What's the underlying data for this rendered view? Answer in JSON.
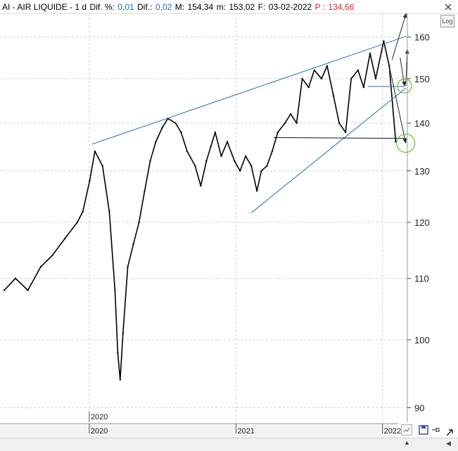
{
  "header": {
    "symbol": "AI",
    "sep1": " - ",
    "name": "AIR LIQUIDE",
    "sep2": " - ",
    "interval": "1 d",
    "dif_pct_label": "Dif. %:",
    "dif_pct_value": "0,01",
    "dif_label": "Dif.:",
    "dif_value": "0,02",
    "m_label": "M:",
    "m_value": "154,34",
    "m2_label": "m:",
    "m2_value": "153,02",
    "f_label": "F:",
    "f_value": "03-02-2022",
    "p_label": "P :",
    "p_value": "134,66"
  },
  "close_icon": "close-icon",
  "log_button": "Log",
  "colors": {
    "price": "#000000",
    "trendline": "#1f6fc8",
    "circle": "#6cbf2a",
    "arrow": "#222222",
    "grid": "#cfcfcf",
    "header_value": "#1f6fc8",
    "header_price": "#e0202a"
  },
  "toolbar": {
    "zoom_icon": "zoom-icon",
    "save_icon": "save-icon",
    "pin_icon": "pin-icon",
    "nav_icon": "arrow-icon"
  },
  "chart_data": {
    "type": "line",
    "title": "",
    "xlabel": "",
    "ylabel": "",
    "scale": "log",
    "ylim": [
      88,
      166
    ],
    "y_ticks": [
      90,
      100,
      110,
      120,
      130,
      140,
      150,
      160
    ],
    "x_ticks": [
      "2020",
      "2021",
      "2022"
    ],
    "top_year_label": "2020",
    "grid": true,
    "series": [
      {
        "x": [
          "2019-06-03",
          "2019-07-01",
          "2019-08-01",
          "2019-09-02",
          "2019-10-01",
          "2019-11-01",
          "2019-12-02",
          "2019-12-16",
          "2020-01-02",
          "2020-01-15",
          "2020-02-03",
          "2020-02-20",
          "2020-03-05",
          "2020-03-12",
          "2020-03-18",
          "2020-03-25",
          "2020-04-06",
          "2020-04-20",
          "2020-05-04",
          "2020-05-18",
          "2020-06-01",
          "2020-06-15",
          "2020-07-01",
          "2020-07-15",
          "2020-08-03",
          "2020-08-17",
          "2020-09-01",
          "2020-09-21",
          "2020-10-05",
          "2020-10-19",
          "2020-10-30",
          "2020-11-10",
          "2020-11-25",
          "2020-12-10",
          "2020-12-28",
          "2021-01-11",
          "2021-01-25",
          "2021-02-08",
          "2021-02-22",
          "2021-03-05",
          "2021-03-19",
          "2021-04-01",
          "2021-04-15",
          "2021-05-03",
          "2021-05-17",
          "2021-06-01",
          "2021-06-15",
          "2021-07-01",
          "2021-07-15",
          "2021-08-02",
          "2021-08-16",
          "2021-09-01",
          "2021-09-15",
          "2021-10-01",
          "2021-10-15",
          "2021-11-01",
          "2021-11-15",
          "2021-12-01",
          "2021-12-15",
          "2022-01-04",
          "2022-01-18",
          "2022-02-03"
        ],
        "y": [
          108,
          110,
          108,
          112,
          114,
          117,
          120,
          122,
          128,
          134,
          131,
          122,
          108,
          98,
          94,
          101,
          112,
          116,
          120,
          126,
          132,
          136,
          139,
          141,
          140,
          138,
          134,
          131,
          127,
          132,
          135,
          138,
          133,
          136,
          132,
          130,
          133,
          131,
          126,
          130,
          131,
          134,
          138,
          140,
          142,
          140,
          150,
          148,
          152,
          150,
          153,
          146,
          140,
          138,
          150,
          152,
          148,
          156,
          150,
          159,
          153,
          136
        ]
      }
    ],
    "annotations": {
      "upper_trendline": [
        [
          "2020-01-08",
          135.5
        ],
        [
          "2022-03-01",
          160.2
        ]
      ],
      "lower_trendline": [
        [
          "2021-02-08",
          121.8
        ],
        [
          "2022-02-28",
          147.8
        ]
      ],
      "support_line": [
        [
          "2021-04-05",
          136.9
        ],
        [
          "2022-03-01",
          136.7
        ]
      ],
      "resistance_segment": [
        [
          "2021-11-25",
          148.2
        ],
        [
          "2022-02-25",
          148.2
        ]
      ],
      "circles": [
        [
          "2022-02-25",
          148.3
        ],
        [
          "2022-02-28",
          135.7
        ]
      ],
      "arrows": [
        [
          [
            "2022-01-20",
            152.0
          ],
          [
            "2022-02-28",
            135.7
          ]
        ],
        [
          [
            "2022-01-25",
            154.5
          ],
          [
            "2022-03-01",
            166.0
          ]
        ],
        [
          [
            "2022-02-28",
            148.3
          ],
          [
            "2022-03-04",
            157.0
          ]
        ],
        [
          [
            "2022-02-14",
            155.0
          ],
          [
            "2022-02-25",
            148.3
          ]
        ]
      ]
    }
  }
}
